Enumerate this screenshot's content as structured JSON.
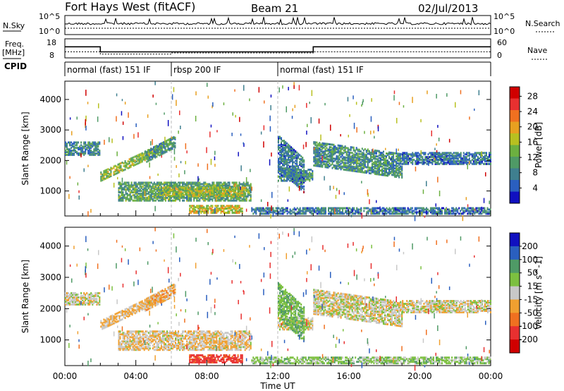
{
  "header": {
    "station": "Fort Hays West (fitACF)",
    "beam": "Beam 21",
    "date": "02/Jul/2013"
  },
  "strip_labels": {
    "nsky": "N.Sky",
    "nsearch": "N.Search",
    "freq_line1": "Freq.",
    "freq_line2": "[MHz]",
    "nave": "Nave",
    "cpid": "CPID",
    "log_hi": "10^5",
    "log_lo": "10^0"
  },
  "cpid_segments": [
    {
      "label": "normal (fast) 151 IF",
      "start_h": 0,
      "end_h": 6
    },
    {
      "label": "rbsp 200 IF",
      "start_h": 6,
      "end_h": 12
    },
    {
      "label": "normal (fast) 151 IF",
      "start_h": 12,
      "end_h": 24
    }
  ],
  "chart_data": [
    {
      "type": "line",
      "title": "N.Sky / N.Search",
      "y_scale": "log",
      "ylim_left": [
        "10^0",
        "10^5"
      ],
      "ylim_right": [
        "10^0",
        "10^5"
      ]
    },
    {
      "type": "line",
      "title": "Freq. / Nave",
      "xlabel": "Time UT",
      "freq_ticks_mhz": [
        8,
        18
      ],
      "nave_ticks": [
        0,
        60
      ],
      "series": [
        {
          "name": "Freq.",
          "x": [
            0,
            2,
            2,
            14,
            14,
            24
          ],
          "values": [
            13.5,
            13.5,
            10.5,
            10.5,
            13.5,
            13.5
          ]
        },
        {
          "name": "Nave",
          "x": [
            0,
            2,
            2,
            6,
            6,
            14,
            14,
            24
          ],
          "values": [
            19,
            19,
            11,
            11,
            15,
            15,
            19,
            19
          ]
        }
      ]
    },
    {
      "type": "heatmap",
      "title": "Power",
      "xlabel": "",
      "ylabel": "Slant Range [km]",
      "colorbar_label": "Power [dB]",
      "colorbar_ticks": [
        "4",
        "8",
        "12",
        "16",
        "20",
        "24",
        "28"
      ],
      "colorscale": [
        "#1010c0",
        "#2a5fbf",
        "#3f7f8f",
        "#4f9a66",
        "#6cb040",
        "#b8c020",
        "#e8a020",
        "#f07020",
        "#e83030",
        "#d00000"
      ],
      "ylim": [
        180,
        4600
      ],
      "yticks": [
        1000,
        2000,
        3000,
        4000
      ],
      "x_range_h": [
        0,
        24
      ],
      "patches": [
        {
          "t0": 0.0,
          "t1": 2.0,
          "r0": 2150,
          "r1": 2600,
          "v": 8
        },
        {
          "t0": 2.0,
          "t1": 5.5,
          "r0": 1300,
          "r1": 1600,
          "v": 14,
          "slope": 950
        },
        {
          "t0": 4.5,
          "t1": 6.2,
          "r0": 1900,
          "r1": 2300,
          "v": 9,
          "slope": 500
        },
        {
          "t0": 3.0,
          "t1": 10.5,
          "r0": 650,
          "r1": 1250,
          "v": 11
        },
        {
          "t0": 5.5,
          "t1": 10.2,
          "r0": 800,
          "r1": 1100,
          "v": 15
        },
        {
          "t0": 7.0,
          "t1": 10.0,
          "r0": 250,
          "r1": 500,
          "v": 17
        },
        {
          "t0": 10.5,
          "t1": 24.0,
          "r0": 220,
          "r1": 420,
          "v": 7
        },
        {
          "t0": 12.0,
          "t1": 14.0,
          "r0": 1300,
          "r1": 1700,
          "v": 9
        },
        {
          "t0": 12.0,
          "t1": 13.5,
          "r0": 1700,
          "r1": 2800,
          "v": 7,
          "slope": -800
        },
        {
          "t0": 14.0,
          "t1": 19.0,
          "r0": 1800,
          "r1": 2600,
          "v": 9,
          "slope": -400
        },
        {
          "t0": 19.0,
          "t1": 24.0,
          "r0": 1850,
          "r1": 2250,
          "v": 7
        }
      ]
    },
    {
      "type": "heatmap",
      "title": "Velocity",
      "xlabel": "Time UT",
      "ylabel": "Slant Range [km]",
      "colorbar_label": "Velocity [m s^-1]",
      "colorbar_ticks": [
        "200",
        "100",
        "50",
        "15",
        "-15",
        "-50",
        "-100",
        "-200"
      ],
      "colorscale": [
        "#1010c0",
        "#2a5fbf",
        "#4f9a66",
        "#7cc040",
        "#c8c8c8",
        "#f0a030",
        "#f07020",
        "#e83030",
        "#d00000"
      ],
      "ylim": [
        180,
        4600
      ],
      "yticks": [
        1000,
        2000,
        3000,
        4000
      ],
      "xticks": [
        "00:00",
        "04:00",
        "08:00",
        "12:00",
        "16:00",
        "20:00",
        "00:00"
      ],
      "x_range_h": [
        0,
        24
      ],
      "patches": [
        {
          "t0": 0.0,
          "t1": 2.0,
          "r0": 2100,
          "r1": 2500,
          "v": 0
        },
        {
          "t0": 2.0,
          "t1": 5.5,
          "r0": 1300,
          "r1": 1600,
          "v": -20,
          "slope": 950
        },
        {
          "t0": 4.5,
          "t1": 6.2,
          "r0": 1900,
          "r1": 2300,
          "v": -30,
          "slope": 500
        },
        {
          "t0": 3.0,
          "t1": 10.5,
          "r0": 650,
          "r1": 1250,
          "v": -10
        },
        {
          "t0": 7.0,
          "t1": 10.0,
          "r0": 250,
          "r1": 500,
          "v": -120
        },
        {
          "t0": 10.5,
          "t1": 24.0,
          "r0": 220,
          "r1": 420,
          "v": 30
        },
        {
          "t0": 12.0,
          "t1": 14.0,
          "r0": 1300,
          "r1": 1700,
          "v": 0
        },
        {
          "t0": 12.0,
          "t1": 13.5,
          "r0": 1700,
          "r1": 2800,
          "v": 40,
          "slope": -800
        },
        {
          "t0": 14.0,
          "t1": 19.0,
          "r0": 1800,
          "r1": 2600,
          "v": 0,
          "slope": -400
        },
        {
          "t0": 19.0,
          "t1": 24.0,
          "r0": 1850,
          "r1": 2250,
          "v": 0
        }
      ]
    }
  ]
}
